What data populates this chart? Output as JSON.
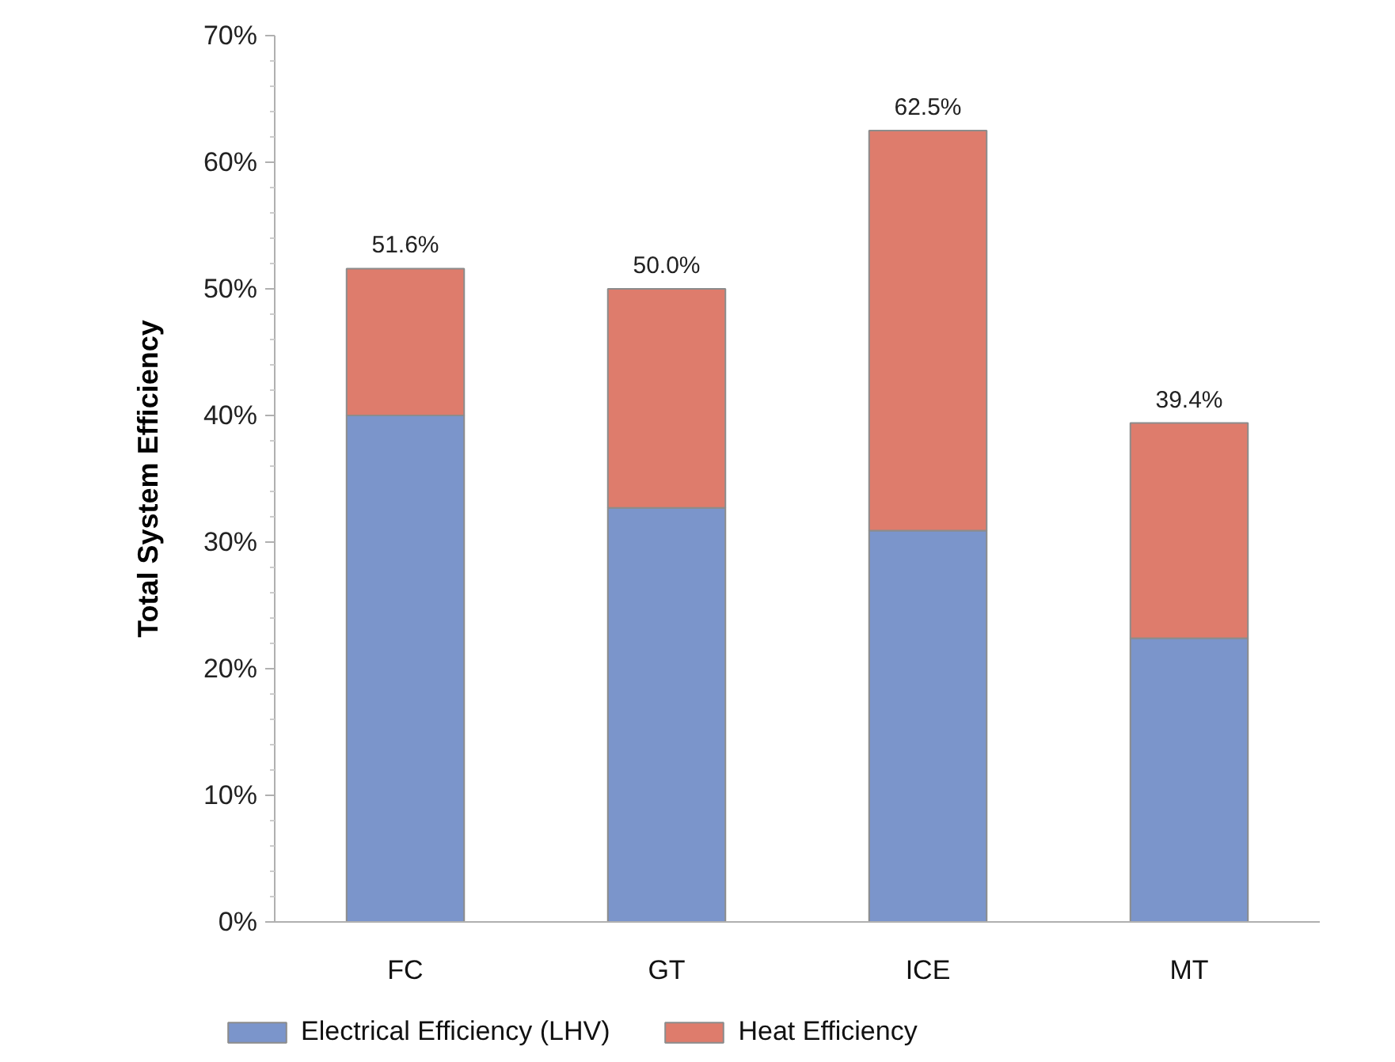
{
  "chart_data": {
    "type": "bar",
    "stacked": true,
    "ylabel": "Total System Efficiency",
    "categories": [
      "FC",
      "GT",
      "ICE",
      "MT"
    ],
    "series": [
      {
        "name": "Electrical Efficiency (LHV)",
        "color": "#7b95cb",
        "values": [
          40.0,
          32.7,
          30.9,
          22.4
        ]
      },
      {
        "name": "Heat Efficiency",
        "color": "#de7c6c",
        "values": [
          11.6,
          17.3,
          31.6,
          17.0
        ]
      }
    ],
    "totals": [
      "51.6%",
      "50.0%",
      "62.5%",
      "39.4%"
    ],
    "ylim": [
      0,
      70
    ],
    "yticks": [
      {
        "value": 0,
        "label": "0%"
      },
      {
        "value": 2,
        "label": null
      },
      {
        "value": 4,
        "label": null
      },
      {
        "value": 6,
        "label": null
      },
      {
        "value": 8,
        "label": null
      },
      {
        "value": 10,
        "label": "10%"
      },
      {
        "value": 12,
        "label": null
      },
      {
        "value": 14,
        "label": null
      },
      {
        "value": 16,
        "label": null
      },
      {
        "value": 18,
        "label": null
      },
      {
        "value": 20,
        "label": "20%"
      },
      {
        "value": 22,
        "label": null
      },
      {
        "value": 24,
        "label": null
      },
      {
        "value": 26,
        "label": null
      },
      {
        "value": 28,
        "label": null
      },
      {
        "value": 30,
        "label": "30%"
      },
      {
        "value": 32,
        "label": null
      },
      {
        "value": 34,
        "label": null
      },
      {
        "value": 36,
        "label": null
      },
      {
        "value": 38,
        "label": null
      },
      {
        "value": 40,
        "label": "40%"
      },
      {
        "value": 42,
        "label": null
      },
      {
        "value": 44,
        "label": null
      },
      {
        "value": 46,
        "label": null
      },
      {
        "value": 48,
        "label": null
      },
      {
        "value": 50,
        "label": "50%"
      },
      {
        "value": 52,
        "label": null
      },
      {
        "value": 54,
        "label": null
      },
      {
        "value": 56,
        "label": null
      },
      {
        "value": 58,
        "label": null
      },
      {
        "value": 60,
        "label": "60%"
      },
      {
        "value": 62,
        "label": null
      },
      {
        "value": 64,
        "label": null
      },
      {
        "value": 66,
        "label": null
      },
      {
        "value": 68,
        "label": null
      },
      {
        "value": 70,
        "label": "70%"
      }
    ],
    "legend": "bottom"
  }
}
